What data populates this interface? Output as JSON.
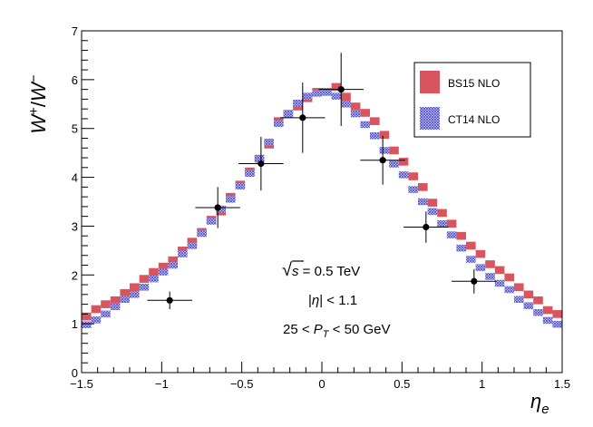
{
  "chart_data": {
    "type": "scatter",
    "ylabel": {
      "base": "W",
      "sup1": "+",
      "slash": "/",
      "base2": "W",
      "sup2": "−"
    },
    "xlabel": {
      "base": "η",
      "sub": "e"
    },
    "xlim": [
      -1.5,
      1.5
    ],
    "ylim": [
      0,
      7
    ],
    "x_ticks": [
      {
        "value": -1.5,
        "label": "−1.5"
      },
      {
        "value": -1.0,
        "label": "−1"
      },
      {
        "value": -0.5,
        "label": "−0.5"
      },
      {
        "value": 0.0,
        "label": "0"
      },
      {
        "value": 0.5,
        "label": "0.5"
      },
      {
        "value": 1.0,
        "label": "1"
      },
      {
        "value": 1.5,
        "label": "1.5"
      }
    ],
    "y_ticks": [
      {
        "value": 0,
        "label": "0"
      },
      {
        "value": 1,
        "label": "1"
      },
      {
        "value": 2,
        "label": "2"
      },
      {
        "value": 3,
        "label": "3"
      },
      {
        "value": 4,
        "label": "4"
      },
      {
        "value": 5,
        "label": "5"
      },
      {
        "value": 6,
        "label": "6"
      },
      {
        "value": 7,
        "label": "7"
      }
    ],
    "band_bin_width": 0.06,
    "series": [
      {
        "name": "BS15 NLO",
        "color": "#d9555d",
        "style": "solid",
        "x": [
          -1.47,
          -1.41,
          -1.35,
          -1.29,
          -1.23,
          -1.17,
          -1.11,
          -1.05,
          -0.99,
          -0.93,
          -0.87,
          -0.81,
          -0.75,
          -0.69,
          -0.63,
          -0.57,
          -0.51,
          -0.45,
          -0.39,
          -0.33,
          -0.27,
          -0.21,
          -0.15,
          -0.09,
          -0.03,
          0.03,
          0.09,
          0.15,
          0.21,
          0.27,
          0.33,
          0.39,
          0.45,
          0.51,
          0.57,
          0.63,
          0.69,
          0.75,
          0.81,
          0.87,
          0.93,
          0.99,
          1.05,
          1.11,
          1.17,
          1.23,
          1.29,
          1.35,
          1.41,
          1.47
        ],
        "y": [
          1.15,
          1.3,
          1.4,
          1.48,
          1.63,
          1.75,
          1.92,
          2.06,
          2.17,
          2.3,
          2.5,
          2.68,
          2.88,
          3.13,
          3.3,
          3.6,
          3.85,
          4.12,
          4.38,
          4.67,
          5.15,
          5.3,
          5.45,
          5.62,
          5.75,
          5.75,
          5.85,
          5.65,
          5.45,
          5.32,
          5.15,
          4.87,
          4.55,
          4.32,
          4.02,
          3.8,
          3.48,
          3.27,
          3.05,
          2.8,
          2.6,
          2.43,
          2.22,
          2.1,
          1.95,
          1.75,
          1.6,
          1.48,
          1.28,
          1.2
        ],
        "band_half_height": 0.08
      },
      {
        "name": "CT14 NLO",
        "color": "#4a4aca",
        "style": "hatched",
        "x": [
          -1.47,
          -1.41,
          -1.35,
          -1.29,
          -1.23,
          -1.17,
          -1.11,
          -1.05,
          -0.99,
          -0.93,
          -0.87,
          -0.81,
          -0.75,
          -0.69,
          -0.63,
          -0.57,
          -0.51,
          -0.45,
          -0.39,
          -0.33,
          -0.27,
          -0.21,
          -0.15,
          -0.09,
          -0.03,
          0.03,
          0.09,
          0.15,
          0.21,
          0.27,
          0.33,
          0.39,
          0.45,
          0.51,
          0.57,
          0.63,
          0.69,
          0.75,
          0.81,
          0.87,
          0.93,
          0.99,
          1.05,
          1.11,
          1.17,
          1.23,
          1.29,
          1.35,
          1.41,
          1.47
        ],
        "y": [
          0.98,
          1.08,
          1.2,
          1.35,
          1.5,
          1.6,
          1.75,
          1.92,
          2.06,
          2.2,
          2.43,
          2.6,
          2.85,
          3.1,
          3.35,
          3.55,
          3.82,
          4.08,
          4.38,
          4.72,
          5.1,
          5.3,
          5.52,
          5.66,
          5.72,
          5.75,
          5.66,
          5.5,
          5.3,
          5.08,
          4.85,
          4.55,
          4.27,
          4.05,
          3.75,
          3.5,
          3.3,
          3.05,
          2.82,
          2.55,
          2.32,
          2.15,
          1.97,
          1.83,
          1.7,
          1.5,
          1.37,
          1.23,
          1.07,
          0.99
        ],
        "band_half_height": 0.07
      },
      {
        "name": "data",
        "color": "#000000",
        "style": "points",
        "x": [
          -0.95,
          -0.65,
          -0.38,
          -0.12,
          0.12,
          0.38,
          0.65,
          0.95
        ],
        "y": [
          1.48,
          3.38,
          4.28,
          5.22,
          5.8,
          4.35,
          2.98,
          1.87
        ],
        "xerr": [
          0.14,
          0.14,
          0.14,
          0.14,
          0.14,
          0.14,
          0.14,
          0.14
        ],
        "yerr": [
          0.18,
          0.42,
          0.55,
          0.72,
          0.75,
          0.5,
          0.32,
          0.25
        ]
      }
    ],
    "legend": {
      "placement": "top-right",
      "entries": [
        {
          "label": "BS15 NLO",
          "series": 0
        },
        {
          "label": "CT14 NLO",
          "series": 1
        }
      ]
    },
    "annotations": {
      "line1": {
        "sqrt": "√",
        "var": "s",
        "rest": " = 0.5 TeV"
      },
      "line2": {
        "pre": "|",
        "var": "η",
        "rest": "| < 1.1"
      },
      "line3": {
        "pre": "25 < ",
        "var": "P",
        "sub": "T",
        "rest": " < 50 GeV"
      }
    }
  }
}
